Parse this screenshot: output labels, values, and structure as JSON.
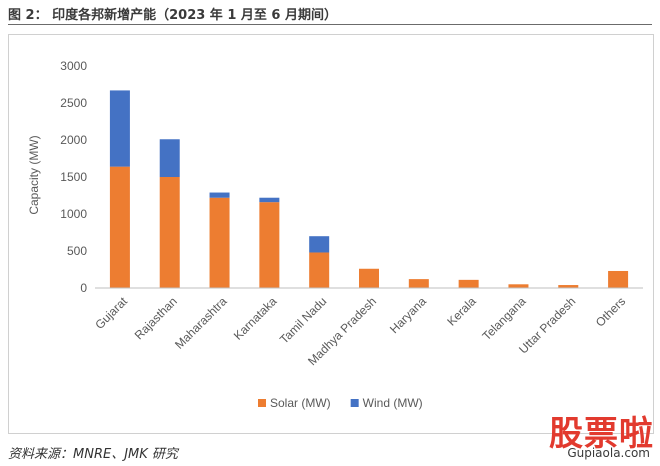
{
  "figure": {
    "title": "图 2： 印度各邦新增产能（2023 年 1 月至 6 月期间）",
    "source": "资料来源：MNRE、JMK 研究"
  },
  "watermark": {
    "main": "股票啦",
    "sub": "Gupiaola.com"
  },
  "chart_data": {
    "type": "bar",
    "stacked": true,
    "title": "",
    "xlabel": "",
    "ylabel": "Capacity (MW)",
    "ylim": [
      0,
      3000
    ],
    "yticks": [
      0,
      500,
      1000,
      1500,
      2000,
      2500,
      3000
    ],
    "grid": false,
    "legend_position": "bottom-center",
    "categories": [
      "Gujarat",
      "Rajasthan",
      "Maharashtra",
      "Karnataka",
      "Tamil Nadu",
      "Madhya Pradesh",
      "Haryana",
      "Kerala",
      "Telangana",
      "Uttar Pradesh",
      "Others"
    ],
    "series": [
      {
        "name": "Solar (MW)",
        "color": "#ED7D31",
        "values": [
          1640,
          1500,
          1220,
          1160,
          480,
          260,
          120,
          110,
          50,
          40,
          230
        ]
      },
      {
        "name": "Wind (MW)",
        "color": "#4472C4",
        "values": [
          1030,
          510,
          70,
          60,
          220,
          0,
          0,
          0,
          0,
          0,
          0
        ]
      }
    ]
  }
}
